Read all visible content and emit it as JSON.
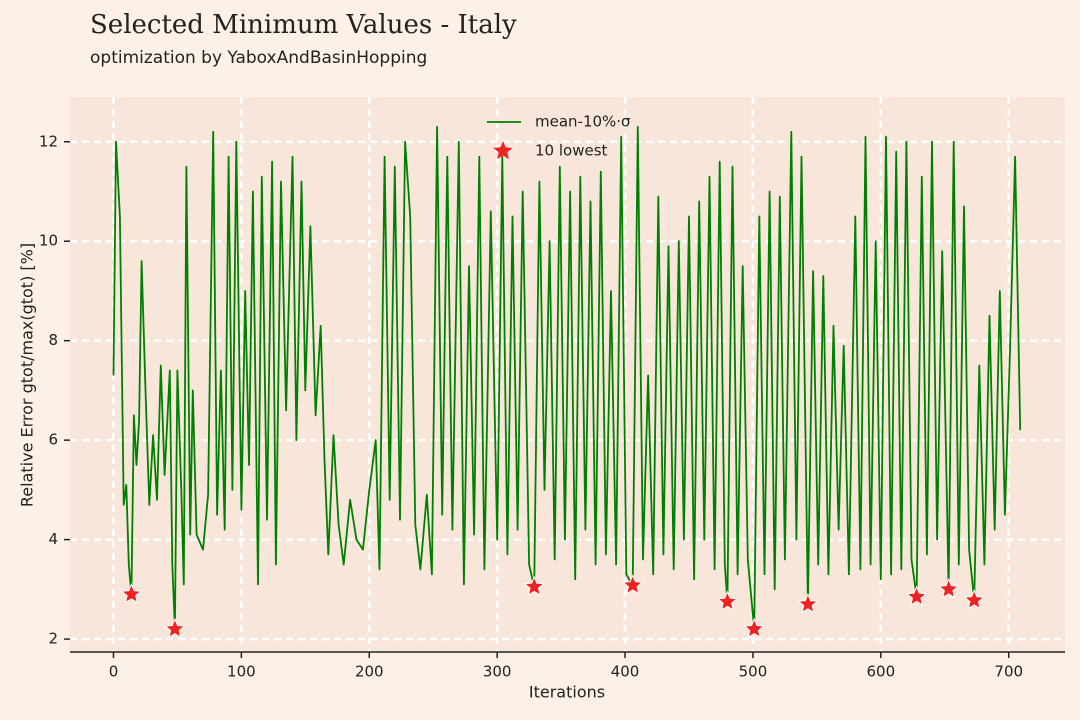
{
  "chart_data": {
    "type": "line",
    "title": "Selected Minimum Values - Italy",
    "subtitle": "optimization by YaboxAndBasinHopping",
    "xlabel": "Iterations",
    "ylabel": "Relative Error gtot/max(gtot) [%]",
    "xlim": [
      -34,
      744
    ],
    "ylim": [
      1.74,
      12.9
    ],
    "xticks": [
      0,
      100,
      200,
      300,
      400,
      500,
      600,
      700
    ],
    "yticks": [
      2,
      4,
      6,
      8,
      10,
      12
    ],
    "grid": true,
    "legend": "top",
    "series": [
      {
        "name": "mean-10%·σ",
        "color": "#008000",
        "x": [
          0,
          2,
          5,
          8,
          10,
          12,
          14,
          16,
          18,
          20,
          22,
          25,
          28,
          31,
          34,
          37,
          40,
          44,
          46,
          48,
          50,
          53,
          55,
          57,
          60,
          62,
          65,
          70,
          74,
          78,
          81,
          84,
          87,
          90,
          93,
          96,
          100,
          103,
          106,
          109,
          113,
          116,
          120,
          124,
          127,
          131,
          135,
          140,
          143,
          147,
          150,
          154,
          158,
          162,
          165,
          168,
          172,
          176,
          180,
          185,
          190,
          195,
          200,
          205,
          208,
          212,
          216,
          220,
          224,
          228,
          232,
          236,
          240,
          245,
          249,
          253,
          257,
          261,
          265,
          270,
          274,
          278,
          282,
          286,
          290,
          295,
          300,
          304,
          308,
          312,
          316,
          320,
          325,
          329,
          333,
          337,
          341,
          345,
          349,
          353,
          357,
          361,
          365,
          369,
          373,
          377,
          381,
          385,
          389,
          393,
          397,
          401,
          406,
          410,
          414,
          418,
          422,
          426,
          430,
          434,
          438,
          442,
          446,
          450,
          454,
          458,
          462,
          466,
          470,
          474,
          478,
          480,
          484,
          488,
          492,
          496,
          501,
          505,
          509,
          513,
          517,
          521,
          525,
          530,
          534,
          538,
          543,
          547,
          551,
          555,
          559,
          563,
          567,
          571,
          575,
          580,
          584,
          588,
          592,
          596,
          600,
          604,
          608,
          612,
          616,
          620,
          624,
          628,
          632,
          636,
          640,
          644,
          648,
          653,
          657,
          661,
          665,
          669,
          673,
          677,
          681,
          685,
          689,
          693,
          697,
          701,
          705,
          709
        ],
        "values": [
          7.3,
          12.0,
          10.5,
          4.7,
          5.1,
          3.5,
          2.9,
          6.5,
          5.5,
          6.4,
          9.6,
          7.0,
          4.7,
          6.1,
          4.8,
          7.5,
          5.3,
          7.4,
          3.5,
          2.2,
          7.4,
          5.0,
          3.1,
          11.5,
          4.1,
          7.0,
          4.1,
          3.8,
          4.9,
          12.2,
          4.5,
          7.4,
          4.2,
          11.7,
          5.0,
          12.0,
          4.6,
          9.0,
          5.5,
          11.0,
          3.1,
          11.3,
          4.4,
          11.6,
          3.5,
          11.2,
          6.6,
          11.7,
          6.0,
          11.2,
          7.0,
          10.3,
          6.5,
          8.3,
          5.6,
          3.7,
          6.1,
          4.3,
          3.5,
          4.8,
          4.0,
          3.8,
          5.0,
          6.0,
          3.4,
          11.7,
          4.8,
          11.5,
          4.4,
          12.0,
          10.5,
          4.3,
          3.4,
          4.9,
          3.3,
          12.3,
          4.5,
          11.7,
          4.2,
          12.0,
          3.1,
          9.5,
          4.1,
          11.7,
          3.4,
          10.6,
          4.0,
          11.7,
          3.7,
          10.5,
          4.2,
          11.0,
          3.5,
          3.05,
          11.2,
          5.0,
          10.0,
          3.6,
          11.5,
          4.0,
          11.0,
          3.2,
          11.3,
          4.2,
          10.8,
          3.5,
          11.4,
          3.7,
          9.0,
          3.5,
          12.1,
          3.3,
          3.08,
          12.3,
          3.6,
          7.3,
          3.3,
          10.9,
          3.7,
          9.9,
          3.4,
          10.0,
          4.0,
          10.5,
          3.2,
          10.8,
          4.0,
          11.3,
          3.4,
          11.6,
          3.5,
          2.75,
          11.5,
          3.3,
          9.5,
          3.6,
          2.2,
          10.5,
          3.3,
          11.0,
          3.0,
          10.9,
          3.6,
          12.2,
          4.0,
          11.7,
          2.7,
          9.4,
          3.5,
          9.3,
          3.3,
          8.3,
          4.2,
          7.9,
          3.3,
          10.5,
          3.4,
          12.1,
          3.5,
          10.0,
          3.2,
          12.1,
          3.3,
          11.8,
          3.4,
          12.0,
          3.6,
          2.85,
          11.3,
          3.7,
          12.0,
          4.0,
          9.8,
          3.0,
          12.0,
          3.5,
          10.7,
          3.8,
          2.78,
          7.5,
          3.5,
          8.5,
          4.2,
          9.0,
          4.5,
          7.8,
          11.7,
          6.2
        ]
      },
      {
        "name": "10 lowest",
        "color": "#ee2222",
        "marker": "star",
        "x": [
          14,
          48,
          329,
          406,
          480,
          501,
          543,
          628,
          653,
          673
        ],
        "values": [
          2.9,
          2.2,
          3.05,
          3.08,
          2.75,
          2.2,
          2.7,
          2.85,
          3.0,
          2.78
        ]
      }
    ]
  }
}
